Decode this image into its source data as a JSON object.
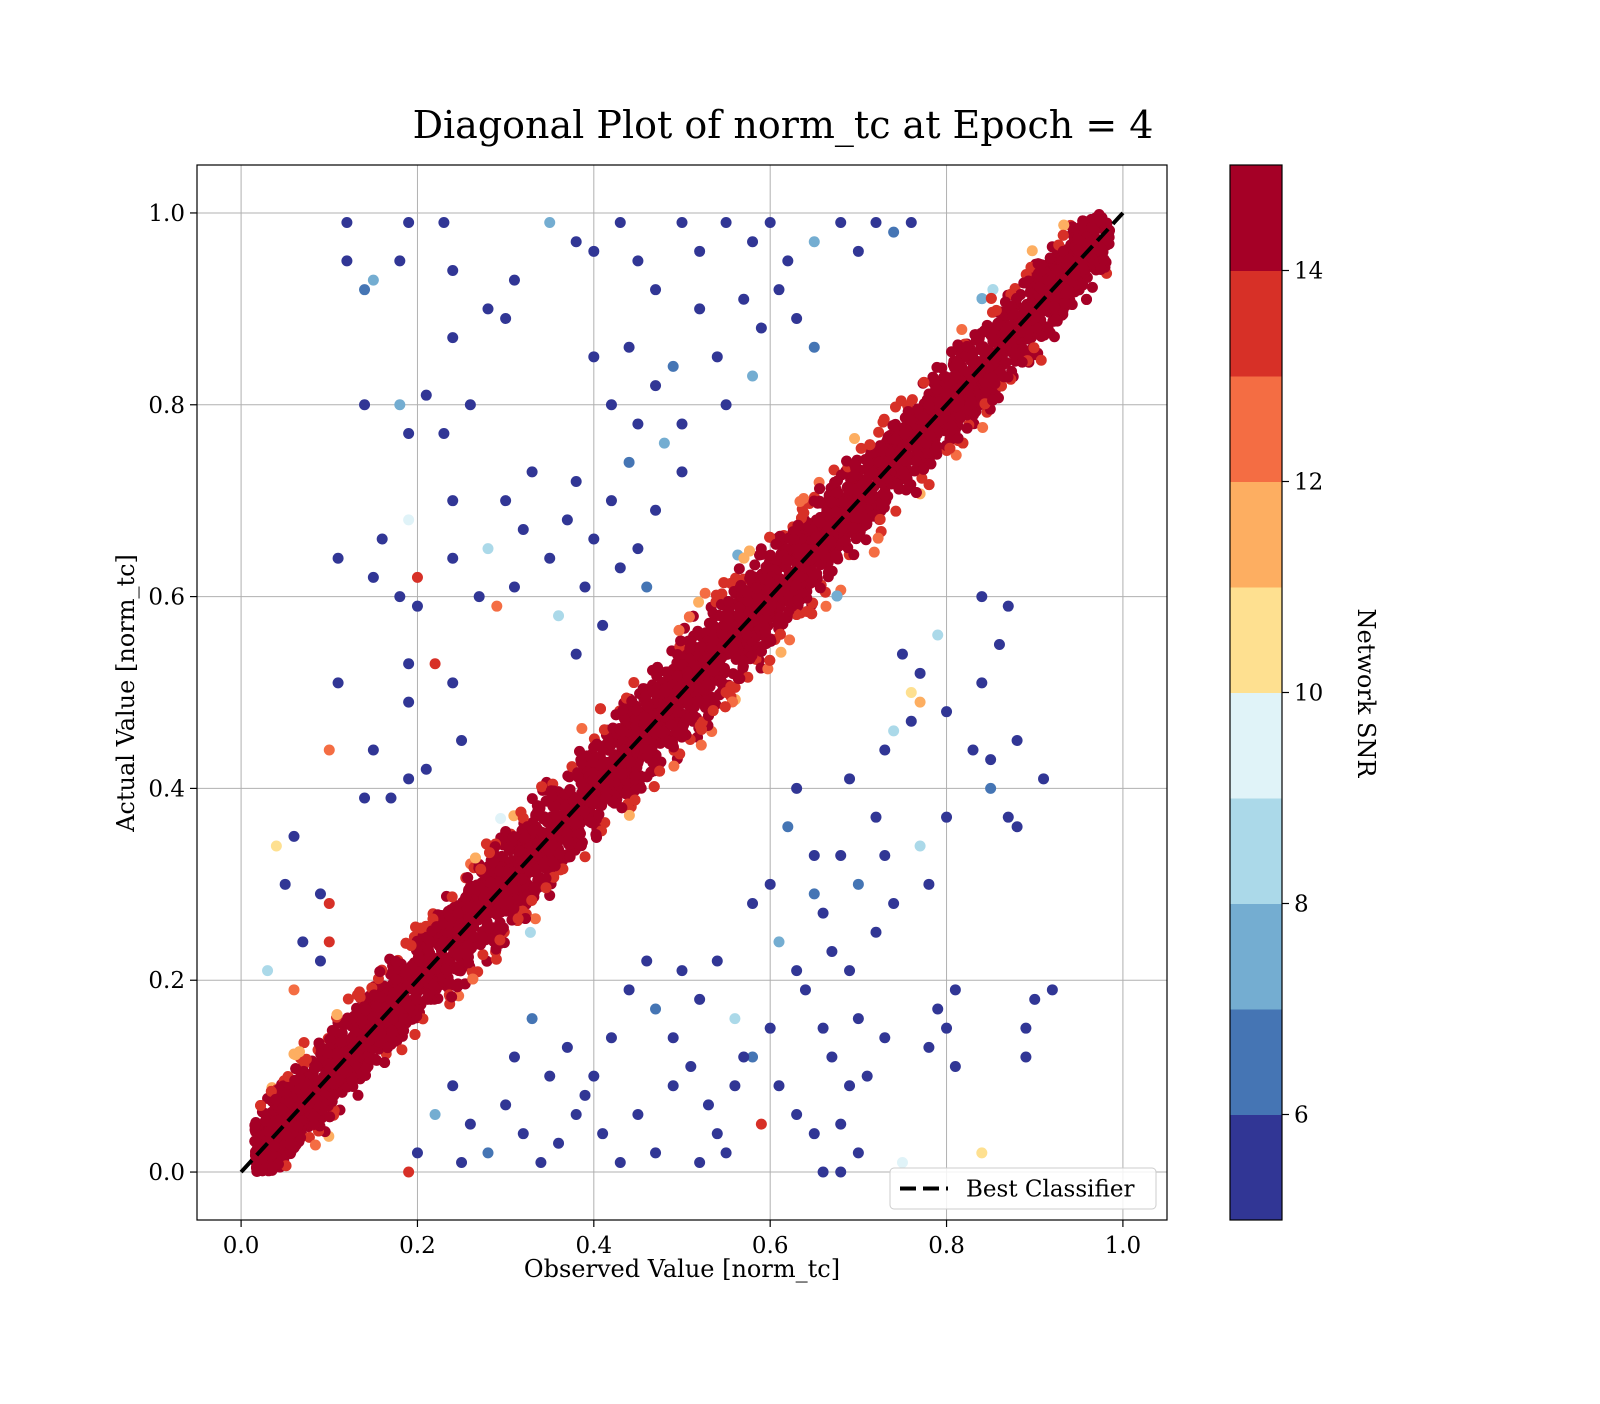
{
  "chart_data": {
    "type": "scatter",
    "title": "Diagonal Plot of norm_tc at Epoch = 4",
    "xlabel": "Observed Value [norm_tc]",
    "ylabel": "Actual Value [norm_tc]",
    "xlim": [
      -0.05,
      1.05
    ],
    "ylim": [
      -0.05,
      1.05
    ],
    "xticks": [
      0.0,
      0.2,
      0.4,
      0.6,
      0.8,
      1.0
    ],
    "yticks": [
      0.0,
      0.2,
      0.4,
      0.6,
      0.8,
      1.0
    ],
    "xtick_labels": [
      "0.0",
      "0.2",
      "0.4",
      "0.6",
      "0.8",
      "1.0"
    ],
    "ytick_labels": [
      "0.0",
      "0.2",
      "0.4",
      "0.6",
      "0.8",
      "1.0"
    ],
    "grid": true,
    "legend": {
      "position": "lower-right",
      "entries": [
        {
          "label": "Best Classifier",
          "style": "black dashed line"
        }
      ]
    },
    "reference_line": {
      "label": "Best Classifier",
      "x": [
        0.0,
        1.0
      ],
      "y": [
        0.0,
        1.0
      ],
      "color": "#000000"
    },
    "colorbar": {
      "label": "Network SNR",
      "range": [
        5,
        15
      ],
      "ticks": [
        6,
        8,
        10,
        12,
        14
      ],
      "tick_labels": [
        "6",
        "8",
        "10",
        "12",
        "14"
      ],
      "colors": [
        "#313695",
        "#4575b4",
        "#74add1",
        "#abd9e9",
        "#e0f3f8",
        "#fee090",
        "#fdae61",
        "#f46d43",
        "#d73027",
        "#a50026"
      ]
    },
    "series": [
      {
        "description_note": "",
        "points": [
          [
            0.12,
            0.99,
            5
          ],
          [
            0.19,
            0.99,
            5
          ],
          [
            0.23,
            0.99,
            5
          ],
          [
            0.12,
            0.95,
            5
          ],
          [
            0.18,
            0.95,
            5
          ],
          [
            0.24,
            0.94,
            5
          ],
          [
            0.14,
            0.92,
            6
          ],
          [
            0.15,
            0.93,
            7
          ],
          [
            0.14,
            0.8,
            5
          ],
          [
            0.18,
            0.8,
            7
          ],
          [
            0.19,
            0.77,
            5
          ],
          [
            0.21,
            0.81,
            5
          ],
          [
            0.23,
            0.77,
            5
          ],
          [
            0.24,
            0.87,
            5
          ],
          [
            0.24,
            0.7,
            5
          ],
          [
            0.26,
            0.8,
            5
          ],
          [
            0.11,
            0.64,
            5
          ],
          [
            0.15,
            0.62,
            5
          ],
          [
            0.16,
            0.66,
            5
          ],
          [
            0.18,
            0.6,
            5
          ],
          [
            0.19,
            0.68,
            9
          ],
          [
            0.2,
            0.62,
            13
          ],
          [
            0.2,
            0.59,
            5
          ],
          [
            0.24,
            0.64,
            5
          ],
          [
            0.11,
            0.51,
            5
          ],
          [
            0.19,
            0.53,
            5
          ],
          [
            0.19,
            0.49,
            5
          ],
          [
            0.22,
            0.53,
            13
          ],
          [
            0.24,
            0.51,
            5
          ],
          [
            0.1,
            0.44,
            12
          ],
          [
            0.15,
            0.44,
            5
          ],
          [
            0.19,
            0.41,
            5
          ],
          [
            0.17,
            0.39,
            5
          ],
          [
            0.14,
            0.39,
            5
          ],
          [
            0.21,
            0.42,
            5
          ],
          [
            0.25,
            0.45,
            5
          ],
          [
            0.29,
            0.59,
            12
          ],
          [
            0.28,
            0.65,
            8
          ],
          [
            0.27,
            0.6,
            5
          ],
          [
            0.31,
            0.61,
            5
          ],
          [
            0.3,
            0.7,
            5
          ],
          [
            0.32,
            0.67,
            5
          ],
          [
            0.33,
            0.73,
            5
          ],
          [
            0.3,
            0.89,
            5
          ],
          [
            0.28,
            0.9,
            5
          ],
          [
            0.31,
            0.93,
            5
          ],
          [
            0.35,
            0.99,
            7
          ],
          [
            0.38,
            0.97,
            5
          ],
          [
            0.4,
            0.96,
            5
          ],
          [
            0.43,
            0.99,
            5
          ],
          [
            0.45,
            0.95,
            5
          ],
          [
            0.47,
            0.92,
            5
          ],
          [
            0.5,
            0.99,
            5
          ],
          [
            0.52,
            0.96,
            5
          ],
          [
            0.55,
            0.99,
            5
          ],
          [
            0.58,
            0.97,
            5
          ],
          [
            0.6,
            0.99,
            5
          ],
          [
            0.62,
            0.95,
            5
          ],
          [
            0.65,
            0.97,
            7
          ],
          [
            0.68,
            0.99,
            5
          ],
          [
            0.7,
            0.96,
            5
          ],
          [
            0.72,
            0.99,
            5
          ],
          [
            0.74,
            0.98,
            6
          ],
          [
            0.76,
            0.99,
            5
          ],
          [
            0.4,
            0.85,
            5
          ],
          [
            0.42,
            0.8,
            5
          ],
          [
            0.44,
            0.86,
            5
          ],
          [
            0.45,
            0.78,
            5
          ],
          [
            0.47,
            0.82,
            5
          ],
          [
            0.49,
            0.84,
            6
          ],
          [
            0.5,
            0.78,
            5
          ],
          [
            0.52,
            0.9,
            5
          ],
          [
            0.54,
            0.85,
            5
          ],
          [
            0.55,
            0.8,
            5
          ],
          [
            0.57,
            0.91,
            5
          ],
          [
            0.58,
            0.83,
            7
          ],
          [
            0.59,
            0.88,
            5
          ],
          [
            0.61,
            0.92,
            5
          ],
          [
            0.63,
            0.89,
            5
          ],
          [
            0.65,
            0.86,
            6
          ],
          [
            0.35,
            0.64,
            5
          ],
          [
            0.37,
            0.68,
            5
          ],
          [
            0.38,
            0.72,
            5
          ],
          [
            0.4,
            0.66,
            5
          ],
          [
            0.42,
            0.7,
            5
          ],
          [
            0.44,
            0.74,
            6
          ],
          [
            0.45,
            0.65,
            5
          ],
          [
            0.47,
            0.69,
            5
          ],
          [
            0.48,
            0.76,
            7
          ],
          [
            0.5,
            0.73,
            5
          ],
          [
            0.36,
            0.58,
            8
          ],
          [
            0.38,
            0.54,
            5
          ],
          [
            0.39,
            0.61,
            5
          ],
          [
            0.41,
            0.57,
            5
          ],
          [
            0.43,
            0.63,
            5
          ],
          [
            0.46,
            0.61,
            6
          ],
          [
            0.84,
            0.6,
            5
          ],
          [
            0.86,
            0.55,
            5
          ],
          [
            0.84,
            0.51,
            5
          ],
          [
            0.87,
            0.59,
            5
          ],
          [
            0.83,
            0.44,
            5
          ],
          [
            0.85,
            0.43,
            5
          ],
          [
            0.88,
            0.45,
            5
          ],
          [
            0.91,
            0.41,
            5
          ],
          [
            0.85,
            0.4,
            6
          ],
          [
            0.87,
            0.37,
            5
          ],
          [
            0.88,
            0.36,
            5
          ],
          [
            0.8,
            0.37,
            5
          ],
          [
            0.77,
            0.34,
            8
          ],
          [
            0.78,
            0.3,
            5
          ],
          [
            0.81,
            0.19,
            5
          ],
          [
            0.79,
            0.17,
            5
          ],
          [
            0.8,
            0.15,
            5
          ],
          [
            0.78,
            0.13,
            5
          ],
          [
            0.81,
            0.11,
            5
          ],
          [
            0.9,
            0.18,
            5
          ],
          [
            0.92,
            0.19,
            5
          ],
          [
            0.89,
            0.15,
            5
          ],
          [
            0.89,
            0.12,
            5
          ],
          [
            0.84,
            0.02,
            10
          ],
          [
            0.75,
            0.01,
            9
          ],
          [
            0.7,
            0.02,
            5
          ],
          [
            0.68,
            0.0,
            5
          ],
          [
            0.66,
            0.0,
            5
          ],
          [
            0.71,
            0.1,
            5
          ],
          [
            0.73,
            0.14,
            5
          ],
          [
            0.7,
            0.16,
            5
          ],
          [
            0.69,
            0.21,
            5
          ],
          [
            0.72,
            0.25,
            5
          ],
          [
            0.74,
            0.28,
            5
          ],
          [
            0.7,
            0.3,
            6
          ],
          [
            0.73,
            0.33,
            5
          ],
          [
            0.72,
            0.37,
            5
          ],
          [
            0.69,
            0.41,
            5
          ],
          [
            0.74,
            0.46,
            8
          ],
          [
            0.73,
            0.44,
            5
          ],
          [
            0.76,
            0.5,
            10
          ],
          [
            0.77,
            0.49,
            11
          ],
          [
            0.77,
            0.52,
            5
          ],
          [
            0.75,
            0.54,
            5
          ],
          [
            0.76,
            0.47,
            5
          ],
          [
            0.79,
            0.56,
            8
          ],
          [
            0.8,
            0.48,
            5
          ],
          [
            0.63,
            0.4,
            5
          ],
          [
            0.65,
            0.33,
            5
          ],
          [
            0.62,
            0.36,
            6
          ],
          [
            0.6,
            0.3,
            5
          ],
          [
            0.58,
            0.28,
            5
          ],
          [
            0.61,
            0.24,
            7
          ],
          [
            0.63,
            0.21,
            5
          ],
          [
            0.64,
            0.19,
            5
          ],
          [
            0.6,
            0.15,
            5
          ],
          [
            0.58,
            0.12,
            6
          ],
          [
            0.61,
            0.09,
            5
          ],
          [
            0.63,
            0.06,
            5
          ],
          [
            0.65,
            0.04,
            5
          ],
          [
            0.59,
            0.05,
            13
          ],
          [
            0.55,
            0.02,
            5
          ],
          [
            0.53,
            0.07,
            5
          ],
          [
            0.51,
            0.11,
            5
          ],
          [
            0.49,
            0.14,
            5
          ],
          [
            0.47,
            0.17,
            6
          ],
          [
            0.52,
            0.18,
            5
          ],
          [
            0.54,
            0.22,
            5
          ],
          [
            0.56,
            0.16,
            8
          ],
          [
            0.5,
            0.21,
            5
          ],
          [
            0.46,
            0.22,
            5
          ],
          [
            0.44,
            0.19,
            5
          ],
          [
            0.42,
            0.14,
            5
          ],
          [
            0.4,
            0.1,
            5
          ],
          [
            0.38,
            0.06,
            5
          ],
          [
            0.36,
            0.03,
            5
          ],
          [
            0.34,
            0.01,
            5
          ],
          [
            0.32,
            0.04,
            5
          ],
          [
            0.3,
            0.07,
            5
          ],
          [
            0.28,
            0.02,
            6
          ],
          [
            0.26,
            0.05,
            5
          ],
          [
            0.24,
            0.09,
            5
          ],
          [
            0.22,
            0.06,
            7
          ],
          [
            0.2,
            0.02,
            5
          ],
          [
            0.19,
            0.0,
            13
          ],
          [
            0.25,
            0.01,
            5
          ],
          [
            0.31,
            0.12,
            5
          ],
          [
            0.33,
            0.16,
            6
          ],
          [
            0.35,
            0.1,
            5
          ],
          [
            0.37,
            0.13,
            5
          ],
          [
            0.39,
            0.08,
            5
          ],
          [
            0.41,
            0.04,
            5
          ],
          [
            0.43,
            0.01,
            5
          ],
          [
            0.45,
            0.06,
            5
          ],
          [
            0.47,
            0.02,
            5
          ],
          [
            0.49,
            0.09,
            5
          ],
          [
            0.52,
            0.01,
            5
          ],
          [
            0.54,
            0.04,
            5
          ],
          [
            0.56,
            0.09,
            5
          ],
          [
            0.57,
            0.12,
            5
          ],
          [
            0.68,
            0.05,
            5
          ],
          [
            0.69,
            0.09,
            5
          ],
          [
            0.67,
            0.12,
            5
          ],
          [
            0.66,
            0.15,
            5
          ],
          [
            0.67,
            0.23,
            5
          ],
          [
            0.66,
            0.27,
            5
          ],
          [
            0.65,
            0.29,
            6
          ],
          [
            0.68,
            0.33,
            5
          ],
          [
            0.04,
            0.34,
            10
          ],
          [
            0.05,
            0.3,
            5
          ],
          [
            0.06,
            0.35,
            5
          ],
          [
            0.09,
            0.29,
            5
          ],
          [
            0.1,
            0.28,
            13
          ],
          [
            0.07,
            0.24,
            5
          ],
          [
            0.03,
            0.21,
            8
          ],
          [
            0.06,
            0.19,
            12
          ],
          [
            0.09,
            0.22,
            5
          ],
          [
            0.1,
            0.24,
            13
          ]
        ]
      }
    ]
  }
}
